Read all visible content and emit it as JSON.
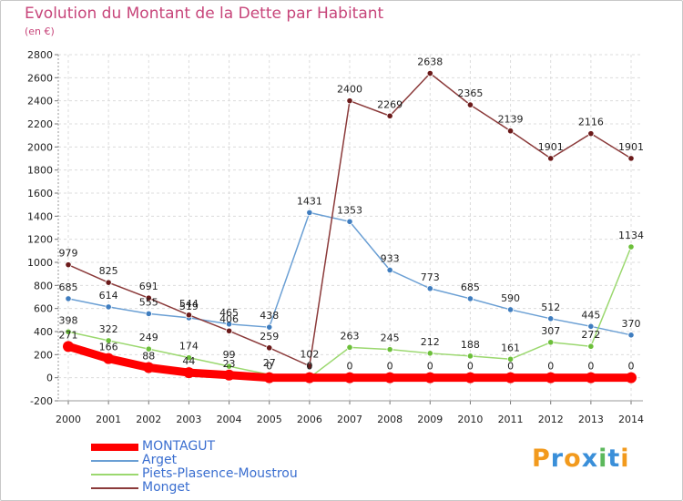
{
  "title": "Evolution du Montant de la Dette par Habitant",
  "subtitle": "(en €)",
  "logo": {
    "text": "Proxiti",
    "letter_colors": [
      "#f29a1d",
      "#3a8fd9",
      "#f29a1d",
      "#3a8fd9",
      "#5cb85c",
      "#3a8fd9",
      "#f29a1d"
    ]
  },
  "chart_data": {
    "type": "line",
    "title": "Evolution du Montant de la Dette par Habitant",
    "ylabel": "(en €)",
    "xlabel": "",
    "ylim": [
      -200,
      2800
    ],
    "yticks": [
      -200,
      0,
      200,
      400,
      600,
      800,
      1000,
      1200,
      1400,
      1600,
      1800,
      2000,
      2200,
      2400,
      2600,
      2800
    ],
    "categories": [
      "2000",
      "2001",
      "2002",
      "2003",
      "2004",
      "2005",
      "2006",
      "2007",
      "2008",
      "2009",
      "2010",
      "2011",
      "2012",
      "2013",
      "2014"
    ],
    "grid": true,
    "legend_position": "bottom-left",
    "series": [
      {
        "name": "Arget",
        "color": "#6a9fd4",
        "marker": "#3f7dbf",
        "values": [
          685,
          614,
          555,
          519,
          465,
          438,
          1431,
          1353,
          933,
          773,
          685,
          590,
          512,
          445,
          370
        ],
        "labels": [
          "685",
          "614",
          "555",
          "519",
          "465",
          "438",
          "1431",
          "1353",
          "933",
          "773",
          "685",
          "590",
          "512",
          "445",
          "370"
        ]
      },
      {
        "name": "Piets-Plasence-Moustrou",
        "color": "#9bd86f",
        "marker": "#6cbf3a",
        "values": [
          398,
          322,
          249,
          174,
          99,
          27,
          0,
          263,
          245,
          212,
          188,
          161,
          307,
          272,
          1134
        ],
        "labels": [
          "398",
          "322",
          "249",
          "174",
          "99",
          "27",
          "0",
          "263",
          "245",
          "212",
          "188",
          "161",
          "307",
          "272",
          "1134"
        ]
      },
      {
        "name": "Monget",
        "color": "#8b3a3a",
        "marker": "#6b1a1a",
        "values": [
          979,
          825,
          691,
          544,
          406,
          259,
          102,
          2400,
          2269,
          2638,
          2365,
          2139,
          1901,
          2116,
          1901
        ],
        "labels": [
          "979",
          "825",
          "691",
          "544",
          "406",
          "259",
          "102",
          "2400",
          "2269",
          "2638",
          "2365",
          "2139",
          "1901",
          "2116",
          "1901"
        ]
      },
      {
        "name": "MONTAGUT",
        "color": "#ff0000",
        "marker": "#ff0000",
        "values": [
          271,
          166,
          88,
          44,
          23,
          0,
          0,
          0,
          0,
          0,
          0,
          0,
          0,
          0,
          0
        ],
        "labels": [
          "271",
          "166",
          "88",
          "44",
          "23",
          "0",
          "0",
          "0",
          "0",
          "0",
          "0",
          "0",
          "0",
          "0",
          "0"
        ]
      }
    ],
    "legend": [
      {
        "name": "MONTAGUT",
        "color": "#ff0000",
        "text_color": "#3b6fd0"
      },
      {
        "name": "Arget",
        "color": "#6a9fd4",
        "text_color": "#3b6fd0"
      },
      {
        "name": "Piets-Plasence-Moustrou",
        "color": "#9bd86f",
        "text_color": "#3b6fd0"
      },
      {
        "name": "Monget",
        "color": "#8b3a3a",
        "text_color": "#3b6fd0"
      }
    ]
  }
}
